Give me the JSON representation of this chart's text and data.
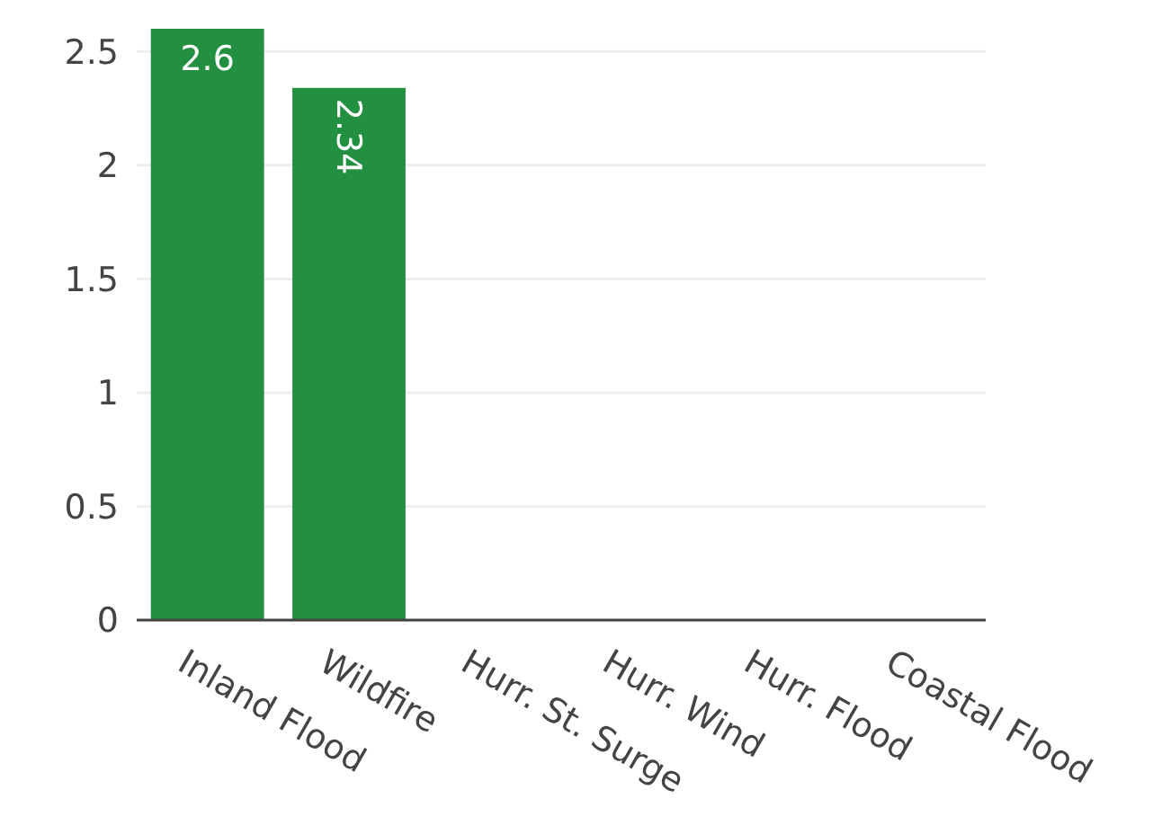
{
  "chart_data": {
    "type": "bar",
    "categories": [
      "Inland Flood",
      "Wildfire",
      "Hurr. St. Surge",
      "Hurr. Wind",
      "Hurr. Flood",
      "Coastal Flood"
    ],
    "values": [
      2.6,
      2.34,
      0,
      0,
      0,
      0
    ],
    "value_labels": [
      "2.6",
      "2.34",
      null,
      null,
      null,
      null
    ],
    "color": "#238f41",
    "ylim": [
      0,
      2.6
    ],
    "yticks": [
      0,
      0.5,
      1,
      1.5,
      2,
      2.5
    ],
    "grid": "y"
  }
}
